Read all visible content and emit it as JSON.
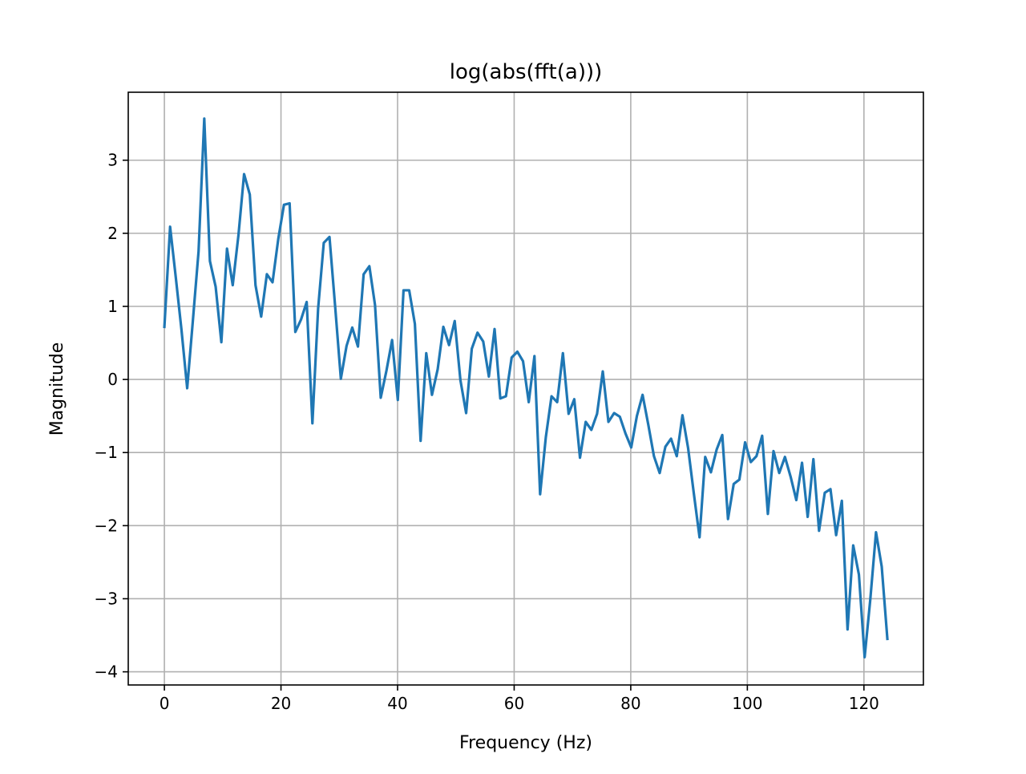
{
  "chart_data": {
    "type": "line",
    "title": "log(abs(fft(a)))",
    "xlabel": "Frequency (Hz)",
    "ylabel": "Magnitude",
    "xlim": [
      -6.2,
      130.2
    ],
    "ylim": [
      -4.18,
      3.93
    ],
    "grid": true,
    "xticks": [
      0,
      20,
      40,
      60,
      80,
      100,
      120
    ],
    "yticks": [
      -4,
      -3,
      -2,
      -1,
      0,
      1,
      2,
      3
    ],
    "xtick_labels": [
      "0",
      "20",
      "40",
      "60",
      "80",
      "100",
      "120"
    ],
    "ytick_labels": [
      "−4",
      "−3",
      "−2",
      "−1",
      "0",
      "1",
      "2",
      "3"
    ],
    "line_color": "#1f77b4",
    "series": [
      {
        "x": [
          0,
          0.98,
          1.95,
          2.93,
          3.91,
          4.88,
          5.86,
          6.84,
          7.81,
          8.79,
          9.77,
          10.74,
          11.72,
          12.7,
          13.67,
          14.65,
          15.63,
          16.6,
          17.58,
          18.55,
          19.53,
          20.51,
          21.48,
          22.46,
          23.44,
          24.41,
          25.39,
          26.37,
          27.34,
          28.32,
          29.3,
          30.27,
          31.25,
          32.23,
          33.2,
          34.18,
          35.16,
          36.13,
          37.11,
          38.09,
          39.06,
          40.04,
          41.02,
          41.99,
          42.97,
          43.95,
          44.92,
          45.9,
          46.88,
          47.85,
          48.83,
          49.8,
          50.78,
          51.76,
          52.73,
          53.71,
          54.69,
          55.66,
          56.64,
          57.62,
          58.59,
          59.57,
          60.55,
          61.52,
          62.5,
          63.48,
          64.45,
          65.43,
          66.41,
          67.38,
          68.36,
          69.34,
          70.31,
          71.29,
          72.27,
          73.24,
          74.22,
          75.2,
          76.17,
          77.15,
          78.13,
          79.1,
          80.08,
          81.05,
          82.03,
          83.01,
          83.98,
          84.96,
          85.94,
          86.91,
          87.89,
          88.87,
          89.84,
          90.82,
          91.8,
          92.77,
          93.75,
          94.73,
          95.7,
          96.68,
          97.66,
          98.63,
          99.61,
          100.59,
          101.56,
          102.54,
          103.52,
          104.49,
          105.47,
          106.45,
          107.42,
          108.4,
          109.38,
          110.35,
          111.33,
          112.3,
          113.28,
          114.26,
          115.23,
          116.21,
          117.19,
          118.16,
          119.14,
          120.12,
          121.09,
          122.07,
          123.05,
          124.02
        ],
        "y": [
          0.72,
          2.09,
          1.4,
          0.68,
          -0.12,
          0.8,
          1.75,
          3.57,
          1.62,
          1.27,
          0.51,
          1.79,
          1.29,
          1.97,
          2.81,
          2.53,
          1.29,
          0.86,
          1.44,
          1.33,
          1.92,
          2.39,
          2.41,
          0.65,
          0.82,
          1.06,
          -0.6,
          0.97,
          1.87,
          1.95,
          0.99,
          0.01,
          0.46,
          0.71,
          0.45,
          1.44,
          1.55,
          1.02,
          -0.25,
          0.12,
          0.54,
          -0.28,
          1.22,
          1.22,
          0.76,
          -0.84,
          0.36,
          -0.21,
          0.14,
          0.72,
          0.47,
          0.8,
          -0.01,
          -0.46,
          0.42,
          0.64,
          0.52,
          0.04,
          0.69,
          -0.26,
          -0.23,
          0.3,
          0.38,
          0.25,
          -0.31,
          0.32,
          -1.57,
          -0.79,
          -0.23,
          -0.31,
          0.36,
          -0.47,
          -0.27,
          -1.07,
          -0.58,
          -0.69,
          -0.47,
          0.11,
          -0.58,
          -0.46,
          -0.51,
          -0.74,
          -0.93,
          -0.5,
          -0.21,
          -0.62,
          -1.05,
          -1.28,
          -0.92,
          -0.81,
          -1.05,
          -0.49,
          -0.94,
          -1.56,
          -2.16,
          -1.06,
          -1.27,
          -0.96,
          -0.76,
          -1.91,
          -1.43,
          -1.37,
          -0.86,
          -1.13,
          -1.05,
          -0.77,
          -1.84,
          -0.98,
          -1.28,
          -1.06,
          -1.33,
          -1.65,
          -1.14,
          -1.88,
          -1.09,
          -2.07,
          -1.55,
          -1.5,
          -2.13,
          -1.66,
          -3.42,
          -2.27,
          -2.67,
          -3.8,
          -3.01,
          -2.09,
          -2.56,
          -3.55
        ]
      }
    ]
  }
}
